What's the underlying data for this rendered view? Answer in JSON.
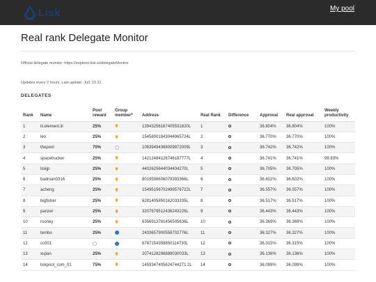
{
  "header": {
    "logo_text": "Lisk",
    "nav_link": "My pool"
  },
  "page": {
    "title": "Real rank Delegate Monitor",
    "monitor_note": "Official delegate monitor: https://explorer.lisk.io/delegateMonitor",
    "update_note": "Updates every 2 hours. Last update: Jul1 23 21",
    "section_label": "DELEGATES"
  },
  "table": {
    "columns": [
      "Rank",
      "Name",
      "Pool reward",
      "Group member*",
      "Address",
      "Real Rank",
      "Difference",
      "Approval",
      "Real approval",
      "Weekly productivity"
    ],
    "rows": [
      {
        "rank": "1",
        "name": "iii.element.iii",
        "reward": "25%",
        "group": "bulb",
        "address": "13943256167405531820L",
        "real_rank": "1",
        "approval": "36.804%",
        "real_approval": "36.804%",
        "productivity": "100%"
      },
      {
        "rank": "2",
        "name": "leo",
        "reward": "25%",
        "group": "bulb",
        "address": "15458001843044965724L",
        "real_rank": "2",
        "approval": "36.770%",
        "real_approval": "36.770%",
        "productivity": "100%"
      },
      {
        "rank": "3",
        "name": "thepool",
        "reward": "70%",
        "group": "empty",
        "address": "10839494368009872009L",
        "real_rank": "3",
        "approval": "36.742%",
        "real_approval": "36.742%",
        "productivity": "100%"
      },
      {
        "rank": "4",
        "name": "spacetrucker",
        "reward": "25%",
        "group": "bulb",
        "address": "14212484126746187777L",
        "real_rank": "4",
        "approval": "36.741%",
        "real_approval": "36.741%",
        "productivity": "99.83%"
      },
      {
        "rank": "5",
        "name": "liskjp",
        "reward": "25%",
        "group": "bulb",
        "address": "4402625644034434270L",
        "real_rank": "5",
        "approval": "36.705%",
        "real_approval": "36.705%",
        "productivity": "100%"
      },
      {
        "rank": "6",
        "name": "badman0316",
        "reward": "25%",
        "group": "bulb",
        "address": "8019598606079393366L",
        "real_rank": "6",
        "approval": "36.602%",
        "real_approval": "36.602%",
        "productivity": "100%"
      },
      {
        "rank": "7",
        "name": "acheng",
        "reward": "25%",
        "group": "bulb",
        "address": "15495156702499576722L",
        "real_rank": "7",
        "approval": "36.557%",
        "real_approval": "36.557%",
        "productivity": "100%"
      },
      {
        "rank": "8",
        "name": "bigfisher",
        "reward": "25%",
        "group": "bulb",
        "address": "6281405850162033335L",
        "real_rank": "8",
        "approval": "36.517%",
        "real_approval": "36.517%",
        "productivity": "100%"
      },
      {
        "rank": "9",
        "name": "panzer",
        "reward": "25%",
        "group": "bulb",
        "address": "3207679512436243226L",
        "real_rank": "9",
        "approval": "36.443%",
        "real_approval": "36.443%",
        "productivity": "100%"
      },
      {
        "rank": "10",
        "name": "rooney",
        "reward": "25%",
        "group": "bulb",
        "address": "6356913781456505636L",
        "real_rank": "10",
        "approval": "36.369%",
        "real_approval": "36.369%",
        "productivity": "100%"
      },
      {
        "rank": "11",
        "name": "tembo",
        "reward": "25%",
        "group": "blue",
        "address": "2433657900558702776L",
        "real_rank": "11",
        "approval": "36.327%",
        "real_approval": "36.327%",
        "productivity": "100%"
      },
      {
        "rank": "12",
        "name": "cc001",
        "reward": "",
        "group": "blue",
        "address": "6787154358850114730L",
        "real_rank": "12",
        "approval": "36.315%",
        "real_approval": "36.315%",
        "productivity": "100%"
      },
      {
        "rank": "13",
        "name": "xujian",
        "reward": "25%",
        "group": "bulb",
        "address": "2074128296889030033L",
        "real_rank": "13",
        "approval": "36.136%",
        "real_approval": "36.136%",
        "productivity": "100%"
      },
      {
        "rank": "14",
        "name": "liskpool_com_01",
        "reward": "75%",
        "group": "bulb",
        "address": "1459347405624744271 2L",
        "real_rank": "14",
        "approval": "36.099%",
        "real_approval": "36.099%",
        "productivity": "100%"
      }
    ]
  },
  "colors": {
    "topbar": "#2b2b2b",
    "link": "#2a7ab8",
    "reward": "#2e9a2e",
    "bulb": "#e0a91e",
    "member_dot": "#2f73d6"
  }
}
